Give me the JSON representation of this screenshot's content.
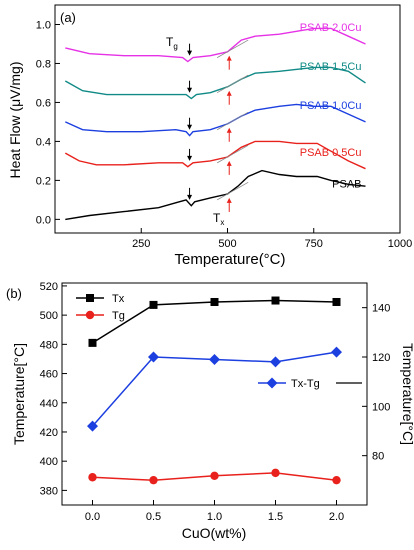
{
  "chart_data": [
    {
      "type": "line",
      "panel_label": "(a)",
      "xlabel": "Temperature(°C)",
      "ylabel": "Heat Flow (μV/mg)",
      "xlim": [
        0,
        1000
      ],
      "ylim": [
        -0.07,
        1.1
      ],
      "x_ticks": [
        "250",
        "500",
        "750",
        "1000"
      ],
      "y_ticks": [
        "0.0",
        "0.2",
        "0.4",
        "0.6",
        "0.8",
        "1.0"
      ],
      "x_tick_values": [
        250,
        500,
        750,
        1000
      ],
      "y_tick_values": [
        0.0,
        0.2,
        0.4,
        0.6,
        0.8,
        1.0
      ],
      "annotations": {
        "tg": "T",
        "tg_sub": "g",
        "tx": "T",
        "tx_sub": "x"
      },
      "series": [
        {
          "name": "PSAB",
          "color": "#000000",
          "points": [
            [
              30,
              0.0
            ],
            [
              100,
              0.02
            ],
            [
              200,
              0.04
            ],
            [
              300,
              0.06
            ],
            [
              360,
              0.09
            ],
            [
              380,
              0.1
            ],
            [
              395,
              0.07
            ],
            [
              405,
              0.09
            ],
            [
              450,
              0.11
            ],
            [
              500,
              0.13
            ],
            [
              530,
              0.17
            ],
            [
              560,
              0.22
            ],
            [
              600,
              0.25
            ],
            [
              650,
              0.23
            ],
            [
              700,
              0.22
            ],
            [
              760,
              0.22
            ],
            [
              800,
              0.2
            ],
            [
              850,
              0.18
            ],
            [
              900,
              0.17
            ]
          ]
        },
        {
          "name": "PSAB 0.5Cu",
          "color": "#e8211c",
          "points": [
            [
              30,
              0.34
            ],
            [
              70,
              0.3
            ],
            [
              120,
              0.28
            ],
            [
              200,
              0.28
            ],
            [
              300,
              0.29
            ],
            [
              370,
              0.29
            ],
            [
              385,
              0.27
            ],
            [
              400,
              0.29
            ],
            [
              450,
              0.3
            ],
            [
              500,
              0.32
            ],
            [
              540,
              0.37
            ],
            [
              580,
              0.4
            ],
            [
              650,
              0.4
            ],
            [
              700,
              0.39
            ],
            [
              760,
              0.39
            ],
            [
              800,
              0.35
            ],
            [
              850,
              0.3
            ],
            [
              900,
              0.26
            ]
          ]
        },
        {
          "name": "PSAB 1.0Cu",
          "color": "#1c3fe0",
          "points": [
            [
              30,
              0.5
            ],
            [
              80,
              0.46
            ],
            [
              150,
              0.45
            ],
            [
              250,
              0.45
            ],
            [
              350,
              0.46
            ],
            [
              380,
              0.45
            ],
            [
              390,
              0.43
            ],
            [
              400,
              0.45
            ],
            [
              450,
              0.46
            ],
            [
              500,
              0.49
            ],
            [
              540,
              0.53
            ],
            [
              580,
              0.56
            ],
            [
              650,
              0.58
            ],
            [
              700,
              0.59
            ],
            [
              750,
              0.58
            ],
            [
              800,
              0.58
            ],
            [
              850,
              0.54
            ],
            [
              900,
              0.5
            ]
          ]
        },
        {
          "name": "PSAB 1.5Cu",
          "color": "#108a86",
          "points": [
            [
              30,
              0.71
            ],
            [
              80,
              0.66
            ],
            [
              150,
              0.64
            ],
            [
              250,
              0.64
            ],
            [
              340,
              0.64
            ],
            [
              380,
              0.64
            ],
            [
              395,
              0.62
            ],
            [
              410,
              0.64
            ],
            [
              450,
              0.65
            ],
            [
              500,
              0.68
            ],
            [
              540,
              0.72
            ],
            [
              580,
              0.75
            ],
            [
              650,
              0.76
            ],
            [
              750,
              0.78
            ],
            [
              800,
              0.78
            ],
            [
              850,
              0.76
            ],
            [
              900,
              0.7
            ]
          ]
        },
        {
          "name": "PSAB 2.0Cu",
          "color": "#e632e6",
          "points": [
            [
              30,
              0.88
            ],
            [
              100,
              0.85
            ],
            [
              200,
              0.84
            ],
            [
              300,
              0.84
            ],
            [
              370,
              0.83
            ],
            [
              385,
              0.81
            ],
            [
              400,
              0.83
            ],
            [
              450,
              0.84
            ],
            [
              500,
              0.86
            ],
            [
              540,
              0.92
            ],
            [
              580,
              0.94
            ],
            [
              650,
              0.95
            ],
            [
              750,
              0.98
            ],
            [
              800,
              0.98
            ],
            [
              850,
              0.94
            ],
            [
              900,
              0.9
            ]
          ]
        }
      ]
    },
    {
      "type": "line",
      "panel_label": "(b)",
      "xlabel": "CuO(wt%)",
      "ylabel": "Temperature[°C]",
      "y2label": "Temperature[°C]",
      "x": [
        0.0,
        0.5,
        1.0,
        1.5,
        2.0
      ],
      "x_ticks": [
        "0.0",
        "0.5",
        "1.0",
        "1.5",
        "2.0"
      ],
      "y_ticks": [
        "380",
        "400",
        "420",
        "440",
        "460",
        "480",
        "500",
        "520"
      ],
      "y2_ticks": [
        "80",
        "100",
        "120",
        "140"
      ],
      "xlim": [
        -0.25,
        2.25
      ],
      "ylim": [
        370,
        522
      ],
      "y2lim": [
        60,
        150
      ],
      "series": [
        {
          "name": "Tx",
          "axis": "left",
          "color": "#000000",
          "marker": "square",
          "values": [
            481,
            507,
            509,
            510,
            509
          ]
        },
        {
          "name": "Tg",
          "axis": "left",
          "color": "#e8211c",
          "marker": "circle",
          "values": [
            389,
            387,
            390,
            392,
            387
          ]
        },
        {
          "name": "Tx-Tg",
          "axis": "right",
          "color": "#1c3fe0",
          "marker": "diamond",
          "values": [
            92,
            120,
            119,
            118,
            122
          ]
        }
      ]
    }
  ]
}
